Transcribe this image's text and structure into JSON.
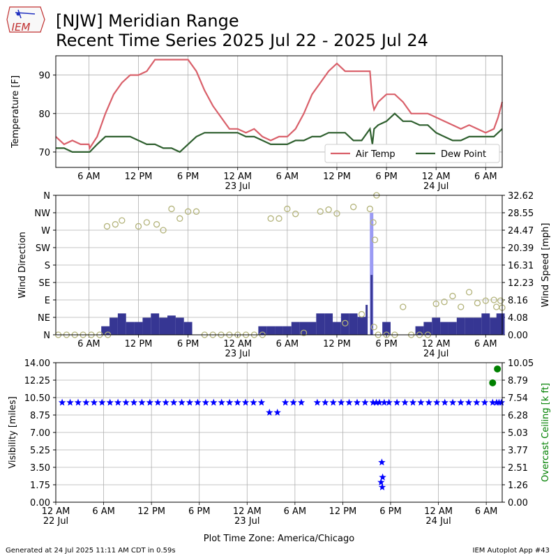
{
  "header": {
    "title_line1": "[NJW] Meridian Range",
    "title_line2": "Recent Time Series 2025 Jul 22 - 2025 Jul 24",
    "logo_text": "IEM"
  },
  "footer": {
    "generated": "Generated at 24 Jul 2025 11:11 AM CDT in 0.59s",
    "app": "IEM Autoplot App #43"
  },
  "colors": {
    "air_temp": "#d9606a",
    "dew_point": "#2e5f2e",
    "wind_bar": "#363693",
    "gust_bar": "#9b9bf4",
    "wind_dir": "#b3b37a",
    "visibility": "#0000ff",
    "ceiling": "#008000",
    "grid": "#b0b0b0"
  },
  "chart_data": [
    {
      "type": "line",
      "ylabel": "Temperature [F]",
      "ylim": [
        66,
        95
      ],
      "yticks": [
        70,
        80,
        90
      ],
      "xlim": [
        2,
        56
      ],
      "xticks": [
        {
          "h": 6,
          "label": "6 AM"
        },
        {
          "h": 12,
          "label": "12 PM"
        },
        {
          "h": 18,
          "label": "6 PM"
        },
        {
          "h": 24,
          "label": "12 AM",
          "sub": "23 Jul"
        },
        {
          "h": 30,
          "label": "6 AM"
        },
        {
          "h": 36,
          "label": "12 PM"
        },
        {
          "h": 42,
          "label": "6 PM"
        },
        {
          "h": 48,
          "label": "12 AM",
          "sub": "24 Jul"
        },
        {
          "h": 54,
          "label": "6 AM"
        }
      ],
      "legend": {
        "position": "lower-right"
      },
      "series": [
        {
          "name": "Air Temp",
          "x": [
            2,
            3,
            4,
            5,
            6,
            6.1,
            7,
            8,
            9,
            10,
            11,
            12,
            13,
            14,
            15,
            16,
            17,
            18,
            19,
            20,
            21,
            22,
            23,
            24,
            25,
            26,
            27,
            28,
            29,
            30,
            31,
            32,
            33,
            34,
            35,
            36,
            37,
            38,
            39,
            40,
            40.3,
            40.5,
            41,
            42,
            43,
            44,
            45,
            46,
            47,
            48,
            49,
            50,
            51,
            52,
            53,
            54,
            55,
            55.5,
            56
          ],
          "y": [
            74,
            72,
            73,
            72,
            72,
            71,
            74,
            80,
            85,
            88,
            90,
            90,
            91,
            94,
            94,
            94,
            94,
            94,
            91,
            86,
            82,
            79,
            76,
            76,
            75,
            76,
            74,
            73,
            74,
            74,
            76,
            80,
            85,
            88,
            91,
            93,
            91,
            91,
            91,
            91,
            83,
            81,
            83,
            85,
            85,
            83,
            80,
            80,
            80,
            79,
            78,
            77,
            76,
            77,
            76,
            75,
            76,
            79,
            83
          ]
        },
        {
          "name": "Dew Point",
          "x": [
            2,
            3,
            4,
            5,
            6,
            6.1,
            7,
            8,
            9,
            10,
            11,
            12,
            13,
            14,
            15,
            16,
            17,
            18,
            19,
            20,
            21,
            22,
            23,
            24,
            25,
            26,
            27,
            28,
            29,
            30,
            31,
            32,
            33,
            34,
            35,
            36,
            37,
            38,
            39,
            40,
            40.3,
            40.5,
            41,
            42,
            43,
            44,
            45,
            46,
            47,
            48,
            49,
            50,
            51,
            52,
            53,
            54,
            55,
            55.5,
            56
          ],
          "y": [
            71,
            71,
            70,
            70,
            70,
            70,
            72,
            74,
            74,
            74,
            74,
            73,
            72,
            72,
            71,
            71,
            70,
            72,
            74,
            75,
            75,
            75,
            75,
            75,
            74,
            74,
            73,
            72,
            72,
            72,
            73,
            73,
            74,
            74,
            75,
            75,
            75,
            73,
            73,
            76,
            72,
            76,
            77,
            78,
            80,
            78,
            78,
            77,
            77,
            75,
            74,
            73,
            73,
            74,
            74,
            74,
            74,
            75,
            76
          ]
        }
      ]
    },
    {
      "type": "bar",
      "ylabel": "Wind Direction",
      "ylabel_right": "Wind Speed [mph]",
      "ylim": [
        0,
        360
      ],
      "right_ylim": [
        0,
        32.62
      ],
      "yticks_left": [
        "N",
        "NE",
        "E",
        "SE",
        "S",
        "SW",
        "W",
        "NW",
        "N"
      ],
      "yticks_right": [
        "0.00",
        "4.08",
        "8.16",
        "12.23",
        "16.31",
        "20.39",
        "24.47",
        "28.55",
        "32.62"
      ],
      "xlim": [
        2,
        56
      ],
      "xticks": [
        {
          "h": 6,
          "label": "6 AM"
        },
        {
          "h": 12,
          "label": "12 PM"
        },
        {
          "h": 18,
          "label": "6 PM"
        },
        {
          "h": 24,
          "label": "12 AM",
          "sub": "23 Jul"
        },
        {
          "h": 30,
          "label": "6 AM"
        },
        {
          "h": 36,
          "label": "12 PM"
        },
        {
          "h": 42,
          "label": "6 PM"
        },
        {
          "h": 48,
          "label": "12 AM",
          "sub": "24 Jul"
        },
        {
          "h": 54,
          "label": "6 AM"
        }
      ],
      "wind_speed": [
        {
          "h": 8,
          "v": 2
        },
        {
          "h": 9,
          "v": 4
        },
        {
          "h": 10,
          "v": 5
        },
        {
          "h": 11,
          "v": 3
        },
        {
          "h": 12,
          "v": 3
        },
        {
          "h": 13,
          "v": 4
        },
        {
          "h": 14,
          "v": 5
        },
        {
          "h": 15,
          "v": 4
        },
        {
          "h": 16,
          "v": 4.5
        },
        {
          "h": 17,
          "v": 4
        },
        {
          "h": 18,
          "v": 3
        },
        {
          "h": 27,
          "v": 2
        },
        {
          "h": 28,
          "v": 2
        },
        {
          "h": 29,
          "v": 2
        },
        {
          "h": 30,
          "v": 2
        },
        {
          "h": 31,
          "v": 3
        },
        {
          "h": 32,
          "v": 3
        },
        {
          "h": 33,
          "v": 3
        },
        {
          "h": 34,
          "v": 5
        },
        {
          "h": 35,
          "v": 5
        },
        {
          "h": 36,
          "v": 3
        },
        {
          "h": 37,
          "v": 5
        },
        {
          "h": 38,
          "v": 5
        },
        {
          "h": 39,
          "v": 4.2
        },
        {
          "h": 39.6,
          "v": 7
        },
        {
          "h": 40.2,
          "v": 14
        },
        {
          "h": 42,
          "v": 3
        },
        {
          "h": 46,
          "v": 2
        },
        {
          "h": 47,
          "v": 3
        },
        {
          "h": 48,
          "v": 4
        },
        {
          "h": 49,
          "v": 3
        },
        {
          "h": 50,
          "v": 3
        },
        {
          "h": 51,
          "v": 4
        },
        {
          "h": 52,
          "v": 4
        },
        {
          "h": 53,
          "v": 4
        },
        {
          "h": 54,
          "v": 5
        },
        {
          "h": 55,
          "v": 4
        },
        {
          "h": 55.8,
          "v": 5
        }
      ],
      "wind_gust": [
        {
          "h": 40.2,
          "v": 28.5
        }
      ],
      "wind_direction": [
        {
          "h": 2.3,
          "d": 0
        },
        {
          "h": 3.3,
          "d": 0
        },
        {
          "h": 4.3,
          "d": 0
        },
        {
          "h": 5.3,
          "d": 0
        },
        {
          "h": 6.3,
          "d": 0
        },
        {
          "h": 7.3,
          "d": 0
        },
        {
          "h": 8.3,
          "d": 0
        },
        {
          "h": 8.2,
          "d": 280
        },
        {
          "h": 9.2,
          "d": 285
        },
        {
          "h": 10.0,
          "d": 295
        },
        {
          "h": 12.0,
          "d": 280
        },
        {
          "h": 13.0,
          "d": 290
        },
        {
          "h": 14.2,
          "d": 285
        },
        {
          "h": 15.0,
          "d": 270
        },
        {
          "h": 16.0,
          "d": 325
        },
        {
          "h": 17.0,
          "d": 300
        },
        {
          "h": 18.0,
          "d": 318
        },
        {
          "h": 19.0,
          "d": 318
        },
        {
          "h": 20.0,
          "d": 0
        },
        {
          "h": 21.0,
          "d": 0
        },
        {
          "h": 22.0,
          "d": 0
        },
        {
          "h": 23.0,
          "d": 0
        },
        {
          "h": 24.0,
          "d": 0
        },
        {
          "h": 25.0,
          "d": 0
        },
        {
          "h": 26.0,
          "d": 0
        },
        {
          "h": 27.0,
          "d": 0
        },
        {
          "h": 28.0,
          "d": 300
        },
        {
          "h": 29.0,
          "d": 300
        },
        {
          "h": 30.0,
          "d": 325
        },
        {
          "h": 31.0,
          "d": 312
        },
        {
          "h": 32.0,
          "d": 5
        },
        {
          "h": 34.0,
          "d": 318
        },
        {
          "h": 35.0,
          "d": 323
        },
        {
          "h": 36.0,
          "d": 313
        },
        {
          "h": 37.0,
          "d": 30
        },
        {
          "h": 38.0,
          "d": 330
        },
        {
          "h": 39.0,
          "d": 53
        },
        {
          "h": 40.0,
          "d": 325
        },
        {
          "h": 40.4,
          "d": 290
        },
        {
          "h": 40.6,
          "d": 245
        },
        {
          "h": 40.8,
          "d": 360
        },
        {
          "h": 40.5,
          "d": 20
        },
        {
          "h": 41.0,
          "d": 0
        },
        {
          "h": 42.0,
          "d": 0
        },
        {
          "h": 43.0,
          "d": 0
        },
        {
          "h": 44.0,
          "d": 72
        },
        {
          "h": 45.0,
          "d": 0
        },
        {
          "h": 46.0,
          "d": 0
        },
        {
          "h": 47.0,
          "d": 0
        },
        {
          "h": 48.0,
          "d": 80
        },
        {
          "h": 49.0,
          "d": 85
        },
        {
          "h": 50.0,
          "d": 100
        },
        {
          "h": 51.0,
          "d": 72
        },
        {
          "h": 52.0,
          "d": 110
        },
        {
          "h": 53.0,
          "d": 82
        },
        {
          "h": 54.0,
          "d": 88
        },
        {
          "h": 55.0,
          "d": 90
        },
        {
          "h": 55.3,
          "d": 72
        },
        {
          "h": 55.8,
          "d": 88
        },
        {
          "h": 56.0,
          "d": 70
        }
      ]
    },
    {
      "type": "scatter",
      "ylabel": "Visibility [miles]",
      "ylabel_right": "Overcast Ceiling [k ft]",
      "ylim": [
        0,
        14
      ],
      "right_ylim": [
        0,
        10.05
      ],
      "yticks_left": [
        "0.00",
        "1.75",
        "3.50",
        "5.25",
        "7.00",
        "8.75",
        "10.50",
        "12.25",
        "14.00"
      ],
      "yticks_right": [
        "0.00",
        "1.26",
        "2.51",
        "3.77",
        "5.03",
        "6.28",
        "7.54",
        "8.79",
        "10.05"
      ],
      "xlim": [
        0,
        56
      ],
      "xticks": [
        {
          "h": 0,
          "label": "12 AM",
          "sub": "22 Jul"
        },
        {
          "h": 6,
          "label": "6 AM"
        },
        {
          "h": 12,
          "label": "12 PM"
        },
        {
          "h": 18,
          "label": "6 PM"
        },
        {
          "h": 24,
          "label": "12 AM",
          "sub": "23 Jul"
        },
        {
          "h": 30,
          "label": "6 AM"
        },
        {
          "h": 36,
          "label": "12 PM"
        },
        {
          "h": 42,
          "label": "6 PM"
        },
        {
          "h": 48,
          "label": "12 AM",
          "sub": "24 Jul"
        },
        {
          "h": 54,
          "label": "6 AM"
        }
      ],
      "xlabel": "Plot Time Zone: America/Chicago",
      "visibility": [
        {
          "h": 0.8,
          "v": 10
        },
        {
          "h": 1.8,
          "v": 10
        },
        {
          "h": 2.8,
          "v": 10
        },
        {
          "h": 3.8,
          "v": 10
        },
        {
          "h": 4.8,
          "v": 10
        },
        {
          "h": 5.8,
          "v": 10
        },
        {
          "h": 6.8,
          "v": 10
        },
        {
          "h": 7.8,
          "v": 10
        },
        {
          "h": 8.8,
          "v": 10
        },
        {
          "h": 9.8,
          "v": 10
        },
        {
          "h": 10.8,
          "v": 10
        },
        {
          "h": 11.8,
          "v": 10
        },
        {
          "h": 12.8,
          "v": 10
        },
        {
          "h": 13.8,
          "v": 10
        },
        {
          "h": 14.8,
          "v": 10
        },
        {
          "h": 15.8,
          "v": 10
        },
        {
          "h": 16.8,
          "v": 10
        },
        {
          "h": 17.8,
          "v": 10
        },
        {
          "h": 18.8,
          "v": 10
        },
        {
          "h": 19.8,
          "v": 10
        },
        {
          "h": 20.8,
          "v": 10
        },
        {
          "h": 21.8,
          "v": 10
        },
        {
          "h": 22.8,
          "v": 10
        },
        {
          "h": 23.8,
          "v": 10
        },
        {
          "h": 24.8,
          "v": 10
        },
        {
          "h": 25.8,
          "v": 10
        },
        {
          "h": 26.8,
          "v": 9
        },
        {
          "h": 27.8,
          "v": 9
        },
        {
          "h": 28.8,
          "v": 10
        },
        {
          "h": 29.8,
          "v": 10
        },
        {
          "h": 30.8,
          "v": 10
        },
        {
          "h": 32.8,
          "v": 10
        },
        {
          "h": 33.8,
          "v": 10
        },
        {
          "h": 34.8,
          "v": 10
        },
        {
          "h": 35.8,
          "v": 10
        },
        {
          "h": 36.8,
          "v": 10
        },
        {
          "h": 37.8,
          "v": 10
        },
        {
          "h": 38.8,
          "v": 10
        },
        {
          "h": 39.8,
          "v": 10
        },
        {
          "h": 40.2,
          "v": 10
        },
        {
          "h": 40.6,
          "v": 10
        },
        {
          "h": 40.8,
          "v": 2
        },
        {
          "h": 40.9,
          "v": 4
        },
        {
          "h": 41.0,
          "v": 2.5
        },
        {
          "h": 40.95,
          "v": 1.5
        },
        {
          "h": 41.2,
          "v": 10
        },
        {
          "h": 41.8,
          "v": 10
        },
        {
          "h": 42.8,
          "v": 10
        },
        {
          "h": 43.8,
          "v": 10
        },
        {
          "h": 44.8,
          "v": 10
        },
        {
          "h": 45.8,
          "v": 10
        },
        {
          "h": 46.8,
          "v": 10
        },
        {
          "h": 47.8,
          "v": 10
        },
        {
          "h": 48.8,
          "v": 10
        },
        {
          "h": 49.8,
          "v": 10
        },
        {
          "h": 50.8,
          "v": 10
        },
        {
          "h": 51.8,
          "v": 10
        },
        {
          "h": 52.8,
          "v": 10
        },
        {
          "h": 53.8,
          "v": 10
        },
        {
          "h": 54.8,
          "v": 10
        },
        {
          "h": 55.3,
          "v": 10
        },
        {
          "h": 55.6,
          "v": 10
        },
        {
          "h": 55.9,
          "v": 10
        }
      ],
      "ceiling": [
        {
          "h": 54.8,
          "c": 8.6
        },
        {
          "h": 55.4,
          "c": 9.6
        }
      ]
    }
  ]
}
